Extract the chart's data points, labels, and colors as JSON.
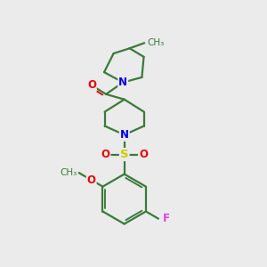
{
  "bg_color": "#ebebeb",
  "bond_color": "#3a7a3a",
  "atom_colors": {
    "N": "#0000ee",
    "O": "#ee0000",
    "S": "#cccc00",
    "F": "#dd44dd",
    "C": "#3a7a3a"
  },
  "line_width": 1.6,
  "font_size": 8.5,
  "methyl_font_size": 7.5
}
